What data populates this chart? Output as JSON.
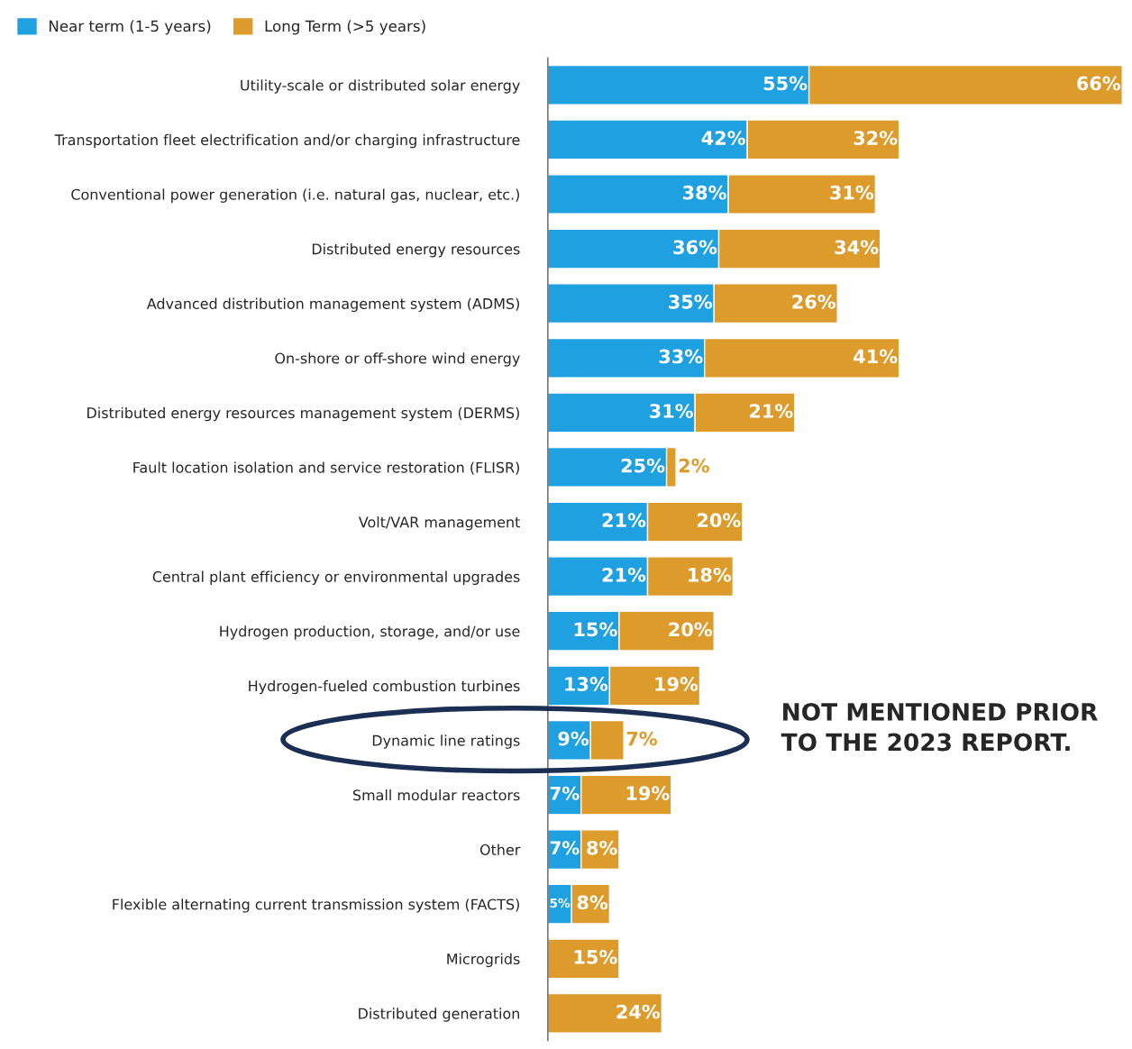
{
  "chart_data": {
    "type": "bar",
    "orientation": "horizontal",
    "stacked": true,
    "legend": "top left",
    "grid": false,
    "categories": [
      "Utility-scale or distributed solar energy",
      "Transportation fleet electrification and/or charging infrastructure",
      "Conventional power generation (i.e. natural gas, nuclear, etc.)",
      "Distributed energy resources",
      "Advanced distribution management system (ADMS)",
      "On-shore or off-shore wind energy",
      "Distributed energy resources management system (DERMS)",
      "Fault location isolation and service restoration (FLISR)",
      "Volt/VAR management",
      "Central plant efficiency or environmental upgrades",
      "Hydrogen production, storage, and/or use",
      "Hydrogen-fueled combustion turbines",
      "Dynamic line ratings",
      "Small modular reactors",
      "Other",
      "Flexible alternating current transmission system (FACTS)",
      "Microgrids",
      "Distributed generation"
    ],
    "series": [
      {
        "name": "Near term (1-5 years)",
        "color": "#1fa0e0",
        "values": [
          55,
          42,
          38,
          36,
          35,
          33,
          31,
          25,
          21,
          21,
          15,
          13,
          9,
          7,
          7,
          5,
          null,
          null
        ],
        "value_labels": [
          "55%",
          "42%",
          "38%",
          "36%",
          "35%",
          "33%",
          "31%",
          "25%",
          "21%",
          "21%",
          "15%",
          "13%",
          "9%",
          "7%",
          "7%",
          "5%",
          null,
          null
        ]
      },
      {
        "name": "Long Term (>5 years)",
        "color": "#dc9b2b",
        "values": [
          66,
          32,
          31,
          34,
          26,
          41,
          21,
          2,
          20,
          18,
          20,
          19,
          7,
          19,
          8,
          8,
          15,
          24
        ],
        "value_labels": [
          "66%",
          "32%",
          "31%",
          "34%",
          "26%",
          "41%",
          "21%",
          "2%",
          "20%",
          "18%",
          "20%",
          "19%",
          "7%",
          "19%",
          "8%",
          "8%",
          "15%",
          "24%"
        ]
      }
    ],
    "annotations": [
      "NOT MENTIONED PRIOR\nTO THE 2023 REPORT."
    ]
  }
}
